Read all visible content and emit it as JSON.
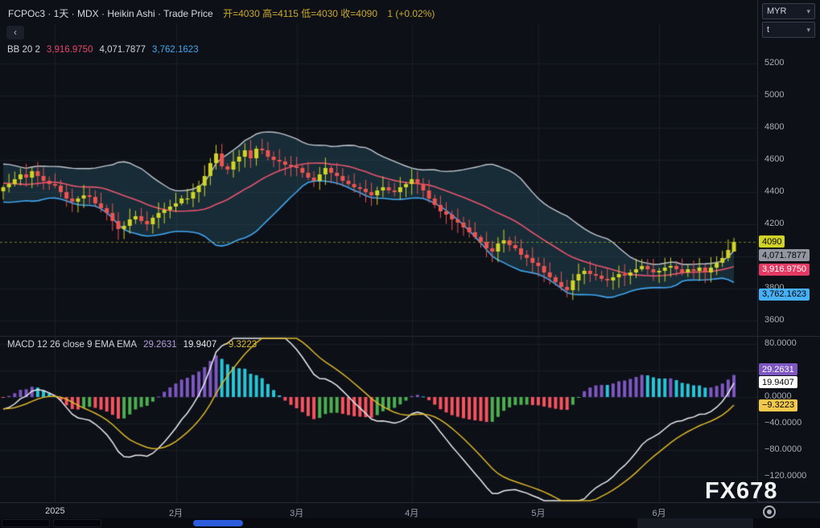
{
  "header": {
    "symbol_line": "FCPOc3 · 1天 · MDX · Heikin Ashi · Trade Price",
    "ohlc_text": "开=4030 高=4115 低=4030 收=4090",
    "change_text": "1 (+0.02%)"
  },
  "toolbar": {
    "back_icon": "‹",
    "currency": "MYR",
    "unit": "t",
    "caret_icon": "▾"
  },
  "bb_legend": {
    "title": "BB 20 2",
    "values": [
      {
        "text": "3,916.9750",
        "color": "#e8486b"
      },
      {
        "text": "4,071.7877",
        "color": "#cfd3dc"
      },
      {
        "text": "3,762.1623",
        "color": "#42a7f0"
      }
    ]
  },
  "macd_legend": {
    "title": "MACD 12 26 close 9 EMA EMA",
    "values": [
      {
        "text": "29.2631",
        "color": "#b39ddb"
      },
      {
        "text": "19.9407",
        "color": "#e6e8ea"
      },
      {
        "text": "−9.3223",
        "color": "#e0bb2e"
      }
    ]
  },
  "price_badges": [
    {
      "text": "4090",
      "value": 4090,
      "bg": "#d1d426",
      "fg": "#000000"
    },
    {
      "text": "4,071.7877",
      "value": 4071.7877,
      "bg": "#9196a1",
      "fg": "#000000"
    },
    {
      "text": "3,916.9750",
      "value": 3916.975,
      "bg": "#e23a62",
      "fg": "#ffffff"
    },
    {
      "text": "3,762.1623",
      "value": 3762.1623,
      "bg": "#48b0f7",
      "fg": "#000000"
    }
  ],
  "macd_badges": [
    {
      "text": "29.2631",
      "value": 29.2631,
      "bg": "#7e57c2",
      "fg": "#ffffff"
    },
    {
      "text": "19.9407",
      "value": 19.9407,
      "bg": "#ffffff",
      "fg": "#000000"
    },
    {
      "text": "−9.3223",
      "value": -9.3223,
      "bg": "#f2c94c",
      "fg": "#000000"
    }
  ],
  "watermark": {
    "text": "FX678"
  },
  "colors": {
    "bg": "#0d1017",
    "grid": "#1a1e28",
    "separator": "#262b36",
    "up": "#d1d426",
    "down": "#ef5350",
    "bb_fill": "rgba(50,120,140,0.28)",
    "bb_upper": "#c2c7d1",
    "bb_mid": "#e8536e",
    "bb_lower": "#41a6f0",
    "macd_line": "#e8eaed",
    "macd_signal": "#dcb62a",
    "hist_pos_rise": "#7e57c2",
    "hist_pos_fall": "#26c6da",
    "hist_neg_fall": "#f7525f",
    "hist_neg_rise": "#4caf50"
  },
  "chart_data": {
    "type": "candlestick",
    "symbol": "FCPOc3",
    "interval": "1天",
    "exchange": "MDX",
    "chart_style": "Heikin Ashi",
    "series_name": "Trade Price",
    "ohlc_current": {
      "open": 4030,
      "high": 4115,
      "low": 4030,
      "close": 4090,
      "change": 1,
      "change_pct": 0.02
    },
    "closes": [
      4430,
      4450,
      4480,
      4510,
      4490,
      4530,
      4500,
      4470,
      4450,
      4440,
      4400,
      4360,
      4340,
      4360,
      4380,
      4370,
      4330,
      4300,
      4270,
      4220,
      4170,
      4190,
      4230,
      4250,
      4220,
      4200,
      4240,
      4270,
      4290,
      4310,
      4330,
      4360,
      4360,
      4400,
      4440,
      4500,
      4580,
      4640,
      4560,
      4540,
      4590,
      4620,
      4660,
      4610,
      4670,
      4660,
      4620,
      4600,
      4590,
      4570,
      4560,
      4550,
      4520,
      4490,
      4470,
      4510,
      4550,
      4520,
      4500,
      4470,
      4450,
      4430,
      4420,
      4400,
      4380,
      4410,
      4430,
      4410,
      4400,
      4430,
      4450,
      4480,
      4450,
      4410,
      4360,
      4320,
      4280,
      4260,
      4230,
      4210,
      4180,
      4150,
      4120,
      4090,
      4050,
      4030,
      4080,
      4100,
      4070,
      4050,
      4010,
      3990,
      3960,
      3940,
      3900,
      3870,
      3840,
      3810,
      3790,
      3850,
      3890,
      3910,
      3890,
      3880,
      3860,
      3850,
      3870,
      3890,
      3880,
      3900,
      3920,
      3940,
      3920,
      3900,
      3910,
      3930,
      3940,
      3920,
      3900,
      3920,
      3910,
      3930,
      3900,
      3930,
      3960,
      3990,
      4040,
      4090
    ],
    "x_axis": {
      "ticks": [
        {
          "label": "2025",
          "index": 9,
          "strong": true
        },
        {
          "label": "2月",
          "index": 30
        },
        {
          "label": "3月",
          "index": 51
        },
        {
          "label": "4月",
          "index": 71
        },
        {
          "label": "5月",
          "index": 93
        },
        {
          "label": "6月",
          "index": 114
        }
      ]
    },
    "price_axis": {
      "ticks": [
        5200,
        5000,
        4800,
        4600,
        4400,
        4200,
        4000,
        3800,
        3600
      ],
      "view_max": 5320,
      "view_min": 3545
    },
    "bollinger": {
      "period": 20,
      "stddev": 2,
      "basis": 3916.975,
      "upper": 4071.7877,
      "lower": 3762.1623
    },
    "macd": {
      "fast": 12,
      "slow": 26,
      "source": "close",
      "signal_period": 9,
      "histogram": 29.2631,
      "macd": 19.9407,
      "signal": -9.3223
    },
    "macd_axis": {
      "ticks": [
        {
          "text": "80.0000",
          "value": 80
        },
        {
          "text": "40.0000",
          "value": 40
        },
        {
          "text": "0.0000",
          "value": 0
        },
        {
          "text": "−40.0000",
          "value": -40
        },
        {
          "text": "−80.0000",
          "value": -80
        },
        {
          "text": "−120.0000",
          "value": -120
        }
      ]
    }
  }
}
